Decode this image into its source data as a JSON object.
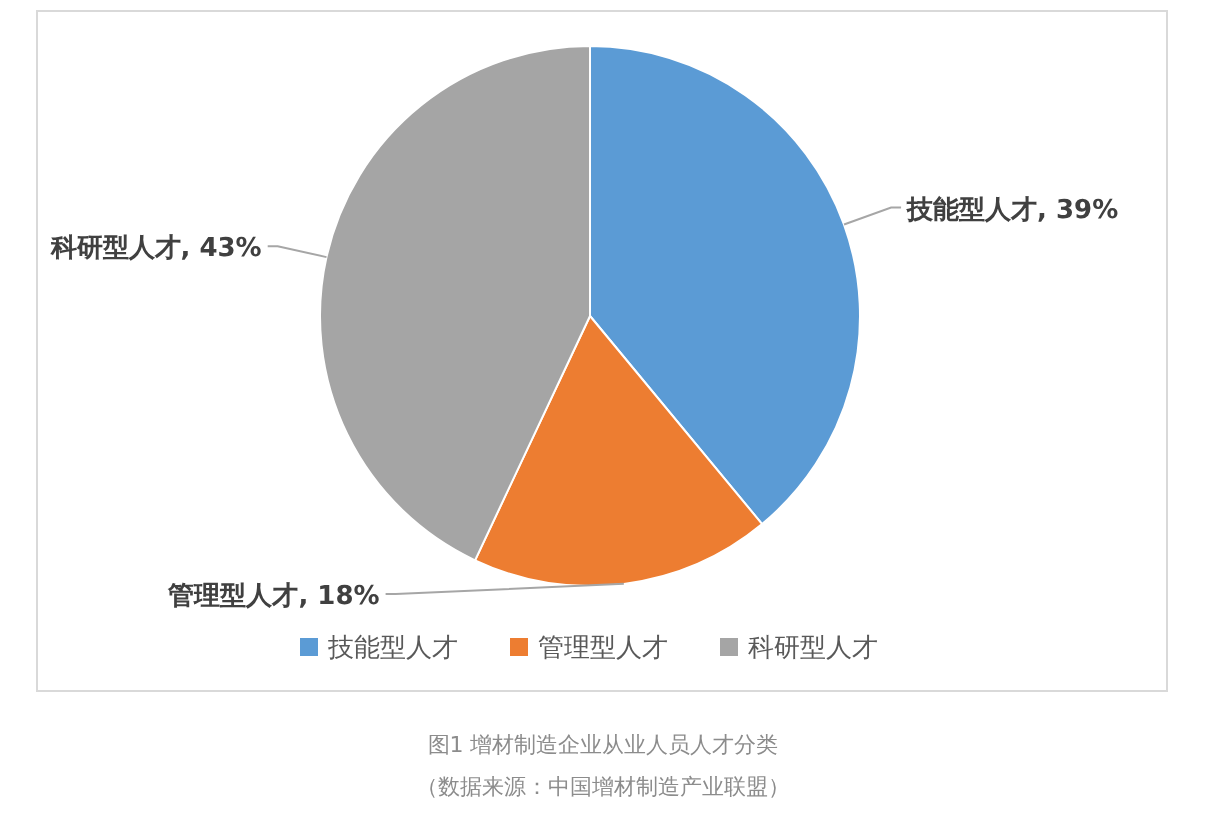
{
  "chart_data": {
    "type": "pie",
    "categories": [
      "技能型人才",
      "管理型人才",
      "科研型人才"
    ],
    "values": [
      39,
      18,
      43
    ],
    "colors": [
      "#5b9bd5",
      "#ed7d31",
      "#a5a5a5"
    ],
    "value_labels": [
      "技能型人才, 39%",
      "管理型人才, 18%",
      "科研型人才, 43%"
    ],
    "legend": "bottom",
    "annotations": [
      "图1  增材制造企业从业人员人才分类",
      "（数据来源：中国增材制造产业联盟）"
    ]
  }
}
